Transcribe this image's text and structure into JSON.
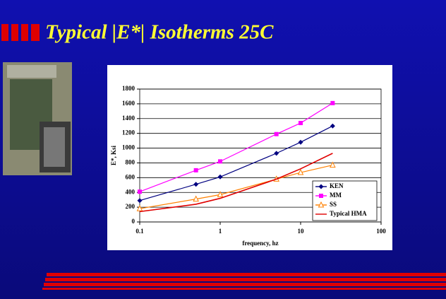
{
  "chart_data": {
    "type": "line",
    "title": "Typical |E*| Isotherms 25C",
    "x_label": "frequency, hz",
    "y_label": "E*, Ksi",
    "x": [
      0.1,
      0.5,
      1,
      5,
      10,
      25
    ],
    "series": [
      {
        "name": "KEN",
        "color": "#000080",
        "marker": "diamond",
        "values": [
          290,
          510,
          610,
          930,
          1080,
          1300
        ]
      },
      {
        "name": "MM",
        "color": "#ff00ff",
        "marker": "square",
        "values": [
          410,
          700,
          820,
          1190,
          1340,
          1610
        ]
      },
      {
        "name": "SS",
        "color": "#ff8000",
        "marker": "triangle",
        "values": [
          180,
          310,
          370,
          580,
          670,
          770
        ]
      },
      {
        "name": "Typical HMA",
        "color": "#e00000",
        "marker": "none",
        "values": [
          140,
          240,
          320,
          580,
          720,
          930
        ]
      }
    ],
    "xscale": "log",
    "xlim": [
      0.1,
      100
    ],
    "xticks": [
      0.1,
      1,
      10,
      100
    ],
    "ylim": [
      0,
      1800
    ],
    "yticks": [
      0,
      200,
      400,
      600,
      800,
      1000,
      1200,
      1400,
      1600,
      1800
    ],
    "grid": true,
    "legend": "lower right"
  }
}
